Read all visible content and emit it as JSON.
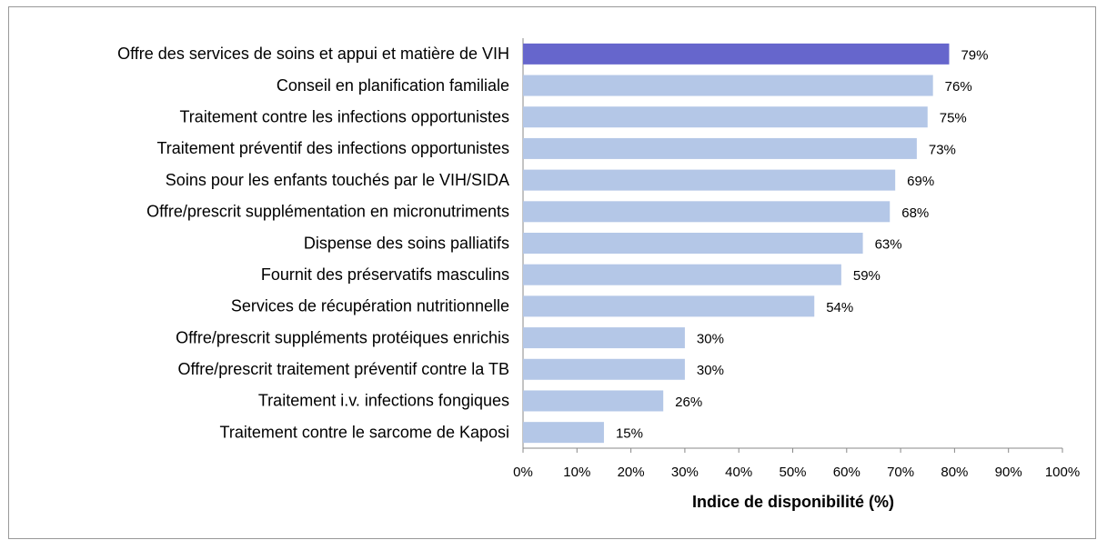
{
  "chart_data": {
    "type": "barh",
    "x_label": "Indice de disponibilité (%)",
    "categories": [
      "Offre des services de soins et appui et matière de VIH",
      "Conseil en planification familiale",
      "Traitement contre les infections opportunistes",
      "Traitement préventif des infections opportunistes",
      "Soins pour les enfants touchés par le VIH/SIDA",
      "Offre/prescrit supplémentation en micronutriments",
      "Dispense des soins palliatifs ",
      "Fournit des préservatifs masculins ",
      "Services de récupération nutritionnelle ",
      "Offre/prescrit suppléments protéiques enrichis",
      "Offre/prescrit traitement préventif contre la TB",
      "Traitement i.v. infections fongiques",
      "Traitement contre le sarcome de Kaposi"
    ],
    "values": [
      79,
      76,
      75,
      73,
      69,
      68,
      63,
      59,
      54,
      30,
      30,
      26,
      15
    ],
    "value_labels": [
      "79%",
      "76%",
      "75%",
      "73%",
      "69%",
      "68%",
      "63%",
      "59%",
      "54%",
      "30%",
      "30%",
      "26%",
      "15%"
    ],
    "colors": [
      "#6666cc",
      "#b4c7e7",
      "#b4c7e7",
      "#b4c7e7",
      "#b4c7e7",
      "#b4c7e7",
      "#b4c7e7",
      "#b4c7e7",
      "#b4c7e7",
      "#b4c7e7",
      "#b4c7e7",
      "#b4c7e7",
      "#b4c7e7"
    ],
    "xlim": [
      0,
      100
    ],
    "xticks": [
      {
        "value": 0,
        "label": "0%"
      },
      {
        "value": 10,
        "label": "10%"
      },
      {
        "value": 20,
        "label": "20%"
      },
      {
        "value": 30,
        "label": "30%"
      },
      {
        "value": 40,
        "label": "40%"
      },
      {
        "value": 50,
        "label": "50%"
      },
      {
        "value": 60,
        "label": "60%"
      },
      {
        "value": 70,
        "label": "70%"
      },
      {
        "value": 80,
        "label": "80%"
      },
      {
        "value": 90,
        "label": "90%"
      },
      {
        "value": 100,
        "label": "100%"
      }
    ],
    "grid": false
  }
}
